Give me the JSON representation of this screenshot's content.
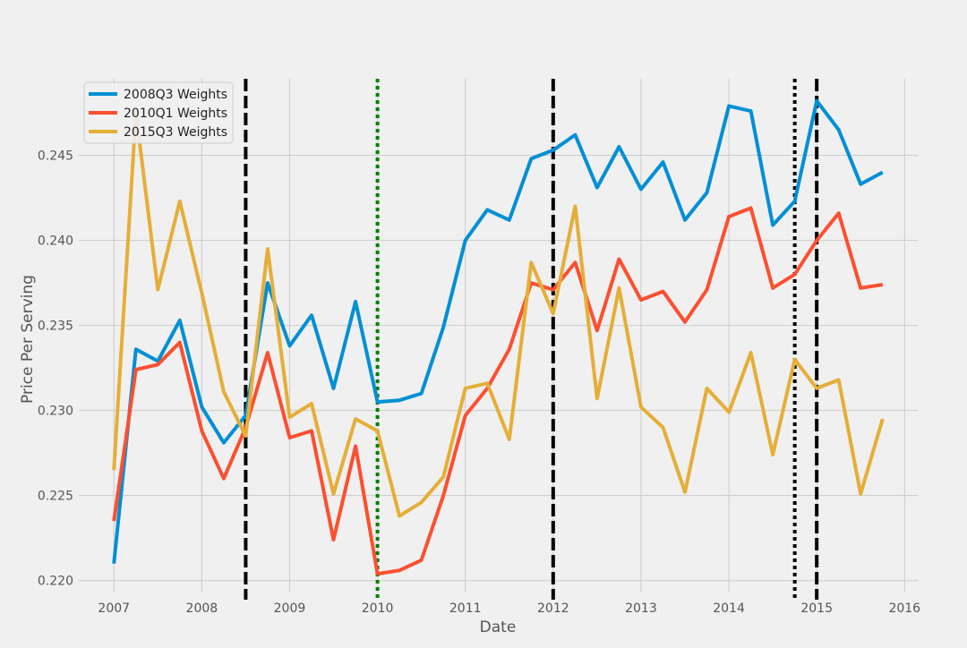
{
  "chart_data": {
    "type": "line",
    "title": "",
    "xlabel": "Date",
    "ylabel": "Price Per Serving",
    "xlim": [
      2006.6,
      2016.15
    ],
    "ylim": [
      0.2193,
      0.2495
    ],
    "grid": true,
    "legend_position": "top-left",
    "x_ticks": [
      2007,
      2008,
      2009,
      2010,
      2011,
      2012,
      2013,
      2014,
      2015,
      2016
    ],
    "x_tick_labels": [
      "2007",
      "2008",
      "2009",
      "2010",
      "2011",
      "2012",
      "2013",
      "2014",
      "2015",
      "2016"
    ],
    "y_ticks": [
      0.22,
      0.225,
      0.23,
      0.235,
      0.24,
      0.245
    ],
    "y_tick_labels": [
      "0.220",
      "0.225",
      "0.230",
      "0.235",
      "0.240",
      "0.245"
    ],
    "x": [
      2007.0,
      2007.25,
      2007.5,
      2007.75,
      2008.0,
      2008.25,
      2008.5,
      2008.75,
      2009.0,
      2009.25,
      2009.5,
      2009.75,
      2010.0,
      2010.25,
      2010.5,
      2010.75,
      2011.0,
      2011.25,
      2011.5,
      2011.75,
      2012.0,
      2012.25,
      2012.5,
      2012.75,
      2013.0,
      2013.25,
      2013.5,
      2013.75,
      2014.0,
      2014.25,
      2014.5,
      2014.75,
      2015.0,
      2015.25,
      2015.5,
      2015.75
    ],
    "series": [
      {
        "name": "2008Q3 Weights",
        "color": "#008fd5",
        "values": [
          0.221,
          0.2336,
          0.2329,
          0.2353,
          0.2302,
          0.2281,
          0.2297,
          0.2375,
          0.2338,
          0.2356,
          0.2313,
          0.2364,
          0.2305,
          0.2306,
          0.231,
          0.2349,
          0.24,
          0.2418,
          0.2412,
          0.2448,
          0.2453,
          0.2462,
          0.2431,
          0.2455,
          0.243,
          0.2446,
          0.2412,
          0.2428,
          0.2479,
          0.2476,
          0.2409,
          0.2423,
          0.2482,
          0.2465,
          0.2433,
          0.244
        ]
      },
      {
        "name": "2010Q1 Weights",
        "color": "#fc4f30",
        "values": [
          0.2235,
          0.2324,
          0.2327,
          0.234,
          0.2288,
          0.226,
          0.229,
          0.2334,
          0.2284,
          0.2288,
          0.2224,
          0.2279,
          0.2204,
          0.2206,
          0.2212,
          0.225,
          0.2297,
          0.2313,
          0.2336,
          0.2375,
          0.2371,
          0.2387,
          0.2347,
          0.2389,
          0.2365,
          0.237,
          0.2352,
          0.2371,
          0.2414,
          0.2419,
          0.2372,
          0.238,
          0.24,
          0.2416,
          0.2372,
          0.2374
        ]
      },
      {
        "name": "2015Q3 Weights",
        "color": "#e5ae38",
        "values": [
          0.2265,
          0.2475,
          0.2371,
          0.2423,
          0.2369,
          0.2311,
          0.2285,
          0.2395,
          0.2296,
          0.2304,
          0.2251,
          0.2295,
          0.2288,
          0.2238,
          0.2246,
          0.2261,
          0.2313,
          0.2316,
          0.2283,
          0.2387,
          0.2357,
          0.242,
          0.2307,
          0.2372,
          0.2302,
          0.229,
          0.2252,
          0.2313,
          0.2299,
          0.2334,
          0.2274,
          0.233,
          0.2313,
          0.2318,
          0.2251,
          0.2295
        ]
      }
    ],
    "vertical_lines": [
      {
        "x": 2008.5,
        "style": "dashed",
        "color": "#000000"
      },
      {
        "x": 2010.0,
        "style": "dotted",
        "color": "#008000"
      },
      {
        "x": 2012.0,
        "style": "dashed",
        "color": "#000000"
      },
      {
        "x": 2014.75,
        "style": "dotted",
        "color": "#000000"
      },
      {
        "x": 2015.0,
        "style": "dashed",
        "color": "#000000"
      }
    ]
  }
}
